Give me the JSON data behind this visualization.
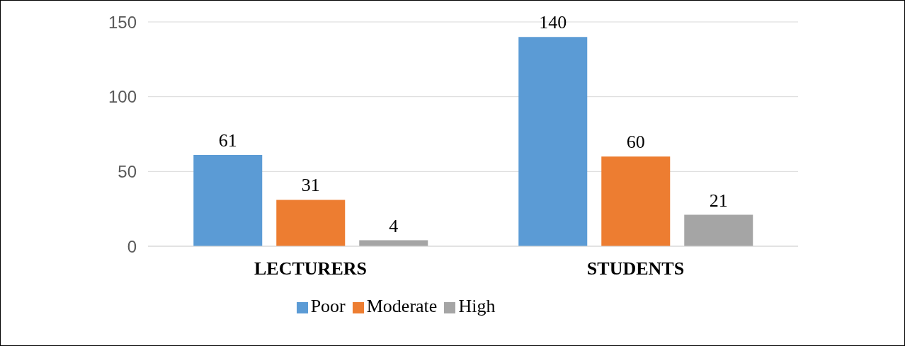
{
  "chart_data": {
    "type": "bar",
    "categories": [
      "LECTURERS",
      "STUDENTS"
    ],
    "series": [
      {
        "name": "Poor",
        "color": "#5b9bd5",
        "values": [
          61,
          140
        ]
      },
      {
        "name": "Moderate",
        "color": "#ed7d31",
        "values": [
          31,
          60
        ]
      },
      {
        "name": "High",
        "color": "#a5a5a5",
        "values": [
          4,
          21
        ]
      }
    ],
    "ylim": [
      0,
      150
    ],
    "yticks": [
      0,
      50,
      100,
      150
    ],
    "grid": "y",
    "legend": "bottom",
    "data_labels": true
  }
}
